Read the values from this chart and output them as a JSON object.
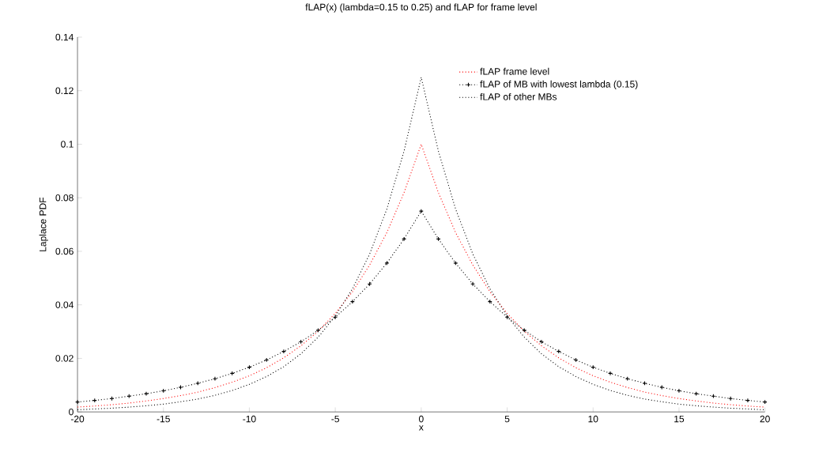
{
  "chart_data": {
    "type": "line",
    "title": "fLAP(x) (lambda=0.15 to 0.25) and fLAP for frame level",
    "xlabel": "x",
    "ylabel": "Laplace PDF",
    "x": [
      -20,
      -19,
      -18,
      -17,
      -16,
      -15,
      -14,
      -13,
      -12,
      -11,
      -10,
      -9,
      -8,
      -7,
      -6,
      -5,
      -4,
      -3,
      -2,
      -1,
      0,
      1,
      2,
      3,
      4,
      5,
      6,
      7,
      8,
      9,
      10,
      11,
      12,
      13,
      14,
      15,
      16,
      17,
      18,
      19,
      20
    ],
    "series": [
      {
        "name": "fLAP frame level",
        "color": "#ff0000",
        "line_style": "dotted",
        "marker": "none",
        "values": [
          0.0018,
          0.0022,
          0.0027,
          0.0033,
          0.0041,
          0.005,
          0.0061,
          0.0074,
          0.0091,
          0.0111,
          0.0135,
          0.0165,
          0.0202,
          0.0247,
          0.0301,
          0.0368,
          0.0449,
          0.0549,
          0.067,
          0.0819,
          0.1,
          0.0819,
          0.067,
          0.0549,
          0.0449,
          0.0368,
          0.0301,
          0.0247,
          0.0202,
          0.0165,
          0.0135,
          0.0111,
          0.0091,
          0.0074,
          0.0061,
          0.005,
          0.0041,
          0.0033,
          0.0027,
          0.0022,
          0.0018
        ]
      },
      {
        "name": "fLAP of MB with lowest lambda (0.15)",
        "color": "#000000",
        "line_style": "dotted",
        "marker": "cross",
        "values": [
          0.0037,
          0.0043,
          0.005,
          0.0059,
          0.0068,
          0.0079,
          0.0092,
          0.0107,
          0.0124,
          0.0144,
          0.0167,
          0.0194,
          0.0226,
          0.0262,
          0.0305,
          0.0354,
          0.0412,
          0.0478,
          0.0556,
          0.0646,
          0.075,
          0.0646,
          0.0556,
          0.0478,
          0.0412,
          0.0354,
          0.0305,
          0.0262,
          0.0226,
          0.0194,
          0.0167,
          0.0144,
          0.0124,
          0.0107,
          0.0092,
          0.0079,
          0.0068,
          0.0059,
          0.005,
          0.0043,
          0.0037
        ]
      },
      {
        "name": "fLAP of other MBs",
        "color": "#000000",
        "line_style": "dotted",
        "marker": "none",
        "values": [
          0.0008,
          0.0011,
          0.0014,
          0.0018,
          0.0023,
          0.0029,
          0.0038,
          0.0048,
          0.0062,
          0.008,
          0.0103,
          0.0132,
          0.0169,
          0.0217,
          0.0279,
          0.0358,
          0.046,
          0.059,
          0.0758,
          0.0974,
          0.125,
          0.0974,
          0.0758,
          0.059,
          0.046,
          0.0358,
          0.0279,
          0.0217,
          0.0169,
          0.0132,
          0.0103,
          0.008,
          0.0062,
          0.0048,
          0.0038,
          0.0029,
          0.0023,
          0.0018,
          0.0014,
          0.0011,
          0.0008
        ]
      }
    ],
    "xlim": [
      -20,
      20
    ],
    "xticks": [
      -20,
      -15,
      -10,
      -5,
      0,
      5,
      10,
      15,
      20
    ],
    "ylim": [
      0,
      0.14
    ],
    "yticks": [
      0,
      0.02,
      0.04,
      0.06,
      0.08,
      0.1,
      0.12,
      0.14
    ],
    "legend": "top right"
  }
}
